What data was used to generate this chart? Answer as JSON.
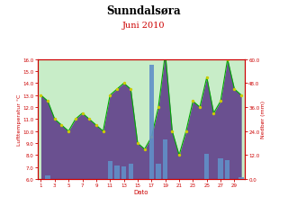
{
  "title": "Sunndalsøra",
  "subtitle": "Juni 2010",
  "xlabel": "Dato",
  "ylabel_left": "Lufttemperatur °C",
  "ylabel_right": "Nedbør (mm)",
  "days": [
    1,
    2,
    3,
    4,
    5,
    6,
    7,
    8,
    9,
    10,
    11,
    12,
    13,
    14,
    15,
    16,
    17,
    18,
    19,
    20,
    21,
    22,
    23,
    24,
    25,
    26,
    27,
    28,
    29,
    30
  ],
  "temp": [
    13.0,
    12.5,
    11.0,
    10.5,
    10.0,
    11.0,
    11.5,
    11.0,
    10.5,
    10.0,
    13.0,
    13.5,
    14.0,
    13.5,
    9.0,
    8.5,
    9.5,
    12.0,
    16.5,
    10.0,
    8.0,
    10.0,
    12.5,
    12.0,
    14.5,
    11.5,
    12.5,
    16.0,
    13.5,
    13.0
  ],
  "precip": [
    0,
    2.0,
    0,
    0,
    0,
    0,
    0,
    0,
    0,
    0,
    9.0,
    7.0,
    6.5,
    7.5,
    0,
    0,
    57.0,
    7.5,
    20.0,
    0,
    0,
    0,
    0,
    0,
    12.5,
    0,
    10.5,
    9.5,
    0,
    1.0
  ],
  "ylim_temp": [
    6.0,
    16.0
  ],
  "ylim_precip": [
    0.0,
    60.0
  ],
  "yticks_temp": [
    6.0,
    7.0,
    8.0,
    9.0,
    10.0,
    11.0,
    12.0,
    13.0,
    14.0,
    15.0,
    16.0
  ],
  "yticks_precip": [
    0.0,
    12.0,
    24.0,
    36.0,
    48.0,
    60.0
  ],
  "xticks": [
    1,
    3,
    5,
    7,
    9,
    11,
    13,
    15,
    17,
    19,
    21,
    23,
    25,
    27,
    29
  ],
  "bg_top_color": "#c8edc8",
  "bg_bottom_color": "#6a5090",
  "bar_color": "#6090c8",
  "line_color": "#00aa00",
  "dot_color": "#cccc00",
  "title_color": "#000000",
  "subtitle_color": "#cc0000",
  "axis_label_color": "#cc0000",
  "tick_color": "#cc0000",
  "border_color": "#cc0000",
  "fig_bg": "#ffffff"
}
